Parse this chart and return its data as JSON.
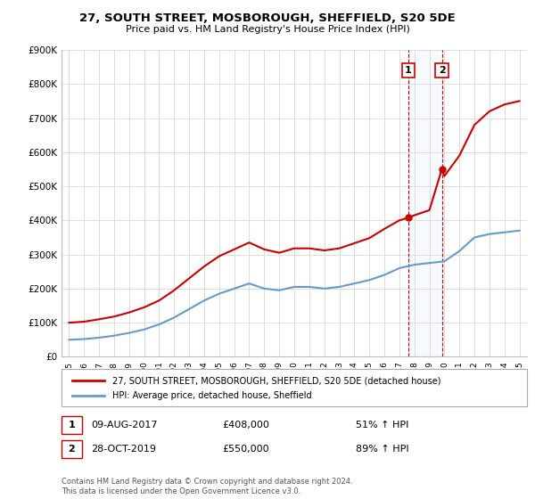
{
  "title": "27, SOUTH STREET, MOSBOROUGH, SHEFFIELD, S20 5DE",
  "subtitle": "Price paid vs. HM Land Registry's House Price Index (HPI)",
  "footer": "Contains HM Land Registry data © Crown copyright and database right 2024.\nThis data is licensed under the Open Government Licence v3.0.",
  "legend_label_red": "27, SOUTH STREET, MOSBOROUGH, SHEFFIELD, S20 5DE (detached house)",
  "legend_label_blue": "HPI: Average price, detached house, Sheffield",
  "sale1_label": "1",
  "sale1_date": "09-AUG-2017",
  "sale1_price": "£408,000",
  "sale1_pct": "51% ↑ HPI",
  "sale2_label": "2",
  "sale2_date": "28-OCT-2019",
  "sale2_price": "£550,000",
  "sale2_pct": "89% ↑ HPI",
  "red_color": "#cc0000",
  "blue_color": "#6699cc",
  "sale1_x": 2017.6,
  "sale1_y": 408000,
  "sale2_x": 2019.83,
  "sale2_y": 550000,
  "ylim": [
    0,
    900000
  ],
  "yticks": [
    0,
    100000,
    200000,
    300000,
    400000,
    500000,
    600000,
    700000,
    800000,
    900000
  ],
  "ytick_labels": [
    "£0",
    "£100K",
    "£200K",
    "£300K",
    "£400K",
    "£500K",
    "£600K",
    "£700K",
    "£800K",
    "£900K"
  ],
  "xlim": [
    1994.5,
    2025.5
  ],
  "background_color": "#ffffff",
  "grid_color": "#dddddd",
  "years_hpi": [
    1995,
    1996,
    1997,
    1998,
    1999,
    2000,
    2001,
    2002,
    2003,
    2004,
    2005,
    2006,
    2007,
    2008,
    2009,
    2010,
    2011,
    2012,
    2013,
    2014,
    2015,
    2016,
    2017,
    2018,
    2019,
    2020,
    2021,
    2022,
    2023,
    2024,
    2025
  ],
  "hpi_values": [
    50000,
    52000,
    56000,
    62000,
    70000,
    80000,
    95000,
    115000,
    140000,
    165000,
    185000,
    200000,
    215000,
    200000,
    195000,
    205000,
    205000,
    200000,
    205000,
    215000,
    225000,
    240000,
    260000,
    270000,
    275000,
    280000,
    310000,
    350000,
    360000,
    365000,
    370000
  ],
  "years_prop": [
    1995,
    1996,
    1997,
    1998,
    1999,
    2000,
    2001,
    2002,
    2003,
    2004,
    2005,
    2006,
    2007,
    2008,
    2009,
    2010,
    2011,
    2012,
    2013,
    2014,
    2015,
    2016,
    2017,
    2017.6,
    2018,
    2019,
    2019.83,
    2020,
    2021,
    2022,
    2023,
    2024,
    2025
  ],
  "prop_values": [
    100000,
    103000,
    110000,
    118000,
    130000,
    145000,
    165000,
    195000,
    230000,
    265000,
    295000,
    315000,
    335000,
    315000,
    305000,
    318000,
    318000,
    312000,
    318000,
    333000,
    348000,
    375000,
    400000,
    408000,
    415000,
    430000,
    550000,
    530000,
    590000,
    680000,
    720000,
    740000,
    750000
  ]
}
